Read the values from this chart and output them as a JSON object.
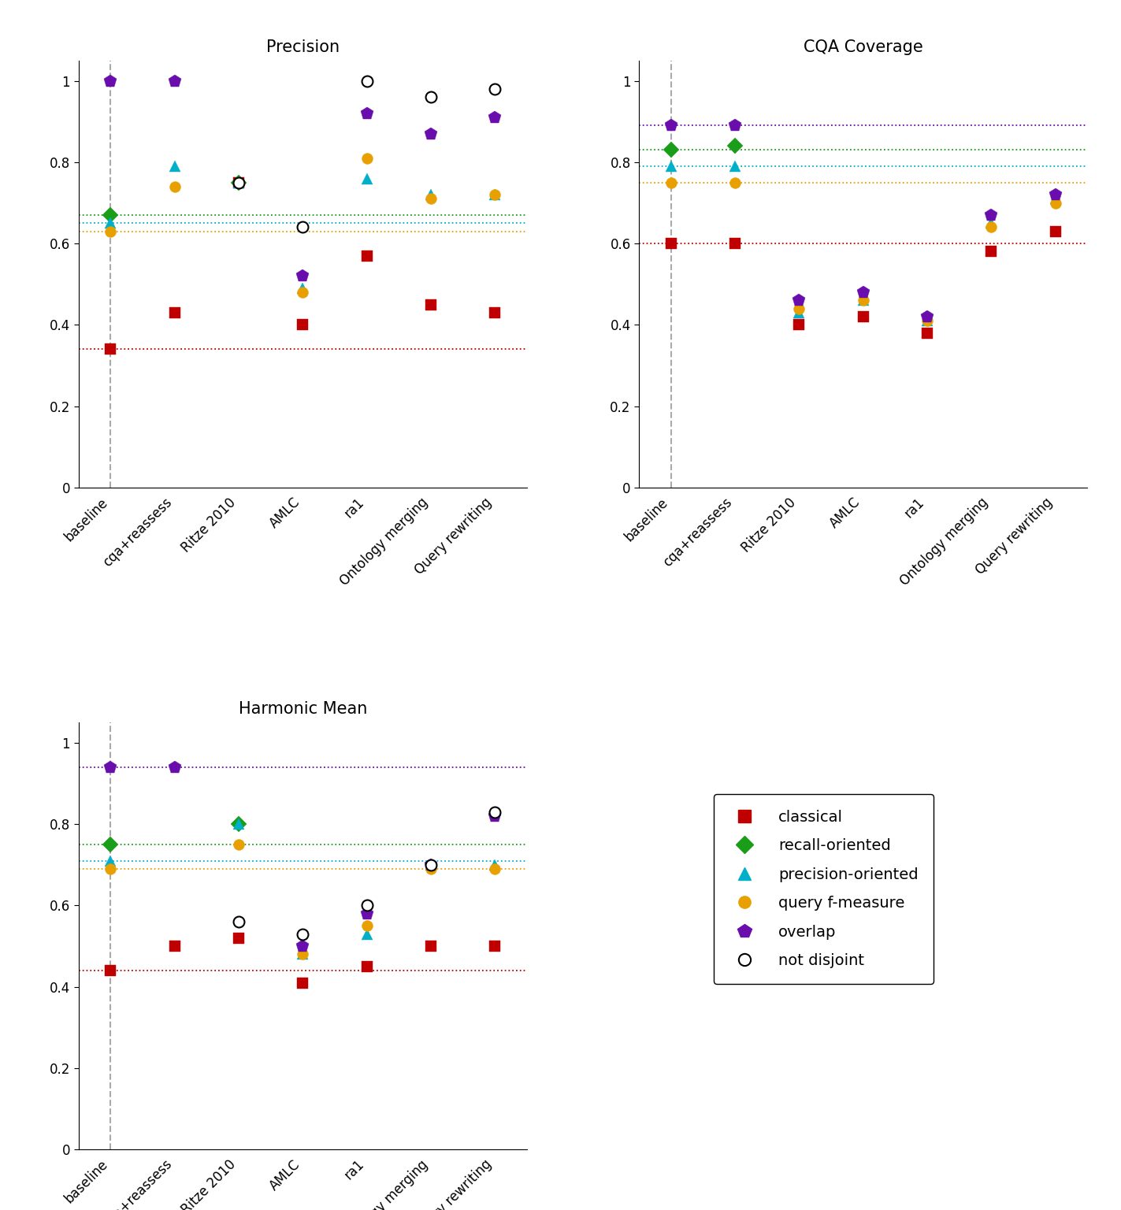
{
  "categories": [
    "baseline",
    "cqa+reassess",
    "Ritze 2010",
    "AMLC",
    "ra1",
    "Ontology merging",
    "Query rewriting"
  ],
  "precision": {
    "classical": [
      0.34,
      0.43,
      0.75,
      0.4,
      0.57,
      0.45,
      0.43
    ],
    "recall_oriented": [
      0.67,
      null,
      0.75,
      null,
      null,
      null,
      null
    ],
    "precision_oriented": [
      0.65,
      0.79,
      0.75,
      0.49,
      0.76,
      0.72,
      0.72
    ],
    "query_fmeasure": [
      0.63,
      0.74,
      0.75,
      0.48,
      0.81,
      0.71,
      0.72
    ],
    "overlap": [
      1.0,
      1.0,
      null,
      0.52,
      0.92,
      0.87,
      0.91
    ],
    "not_disjoint": [
      null,
      null,
      0.75,
      0.64,
      1.0,
      0.96,
      0.98
    ]
  },
  "cqa_coverage": {
    "classical": [
      0.6,
      0.6,
      0.4,
      0.42,
      0.38,
      0.58,
      0.63
    ],
    "recall_oriented": [
      0.83,
      0.84,
      null,
      null,
      null,
      null,
      null
    ],
    "precision_oriented": [
      0.79,
      0.79,
      0.43,
      0.46,
      0.41,
      0.65,
      0.71
    ],
    "query_fmeasure": [
      0.75,
      0.75,
      0.44,
      0.46,
      0.41,
      0.64,
      0.7
    ],
    "overlap": [
      0.89,
      0.89,
      0.46,
      0.48,
      0.42,
      0.67,
      0.72
    ],
    "not_disjoint": [
      null,
      null,
      null,
      null,
      null,
      null,
      null
    ]
  },
  "harmonic_mean": {
    "classical": [
      0.44,
      0.5,
      0.52,
      0.41,
      0.45,
      0.5,
      0.5
    ],
    "recall_oriented": [
      0.75,
      null,
      0.8,
      null,
      null,
      null,
      null
    ],
    "precision_oriented": [
      0.71,
      null,
      0.8,
      0.48,
      0.53,
      0.7,
      0.7
    ],
    "query_fmeasure": [
      0.69,
      null,
      0.75,
      0.48,
      0.55,
      0.69,
      0.69
    ],
    "overlap": [
      0.94,
      0.94,
      null,
      0.5,
      0.58,
      0.7,
      0.82
    ],
    "not_disjoint": [
      null,
      null,
      0.56,
      0.53,
      0.6,
      0.7,
      0.83
    ]
  },
  "hlines": {
    "precision": {
      "classical": 0.34,
      "recall_oriented": 0.67,
      "precision_oriented": 0.65,
      "query_fmeasure": 0.63
    },
    "cqa_coverage": {
      "classical": 0.6,
      "recall_oriented": 0.83,
      "precision_oriented": 0.79,
      "query_fmeasure": 0.75,
      "overlap": 0.89
    },
    "harmonic_mean": {
      "classical": 0.44,
      "recall_oriented": 0.75,
      "precision_oriented": 0.71,
      "query_fmeasure": 0.69,
      "overlap": 0.94
    }
  },
  "colors": {
    "classical": "#c00000",
    "recall_oriented": "#1a9e1a",
    "precision_oriented": "#00b0c8",
    "query_fmeasure": "#e8a000",
    "overlap": "#6a0dad",
    "not_disjoint": "#000000"
  },
  "hline_colors": {
    "classical": "#c00000",
    "recall_oriented": "#1a9e1a",
    "precision_oriented": "#00b0c8",
    "query_fmeasure": "#e8a000",
    "overlap": "#6a0dad"
  }
}
